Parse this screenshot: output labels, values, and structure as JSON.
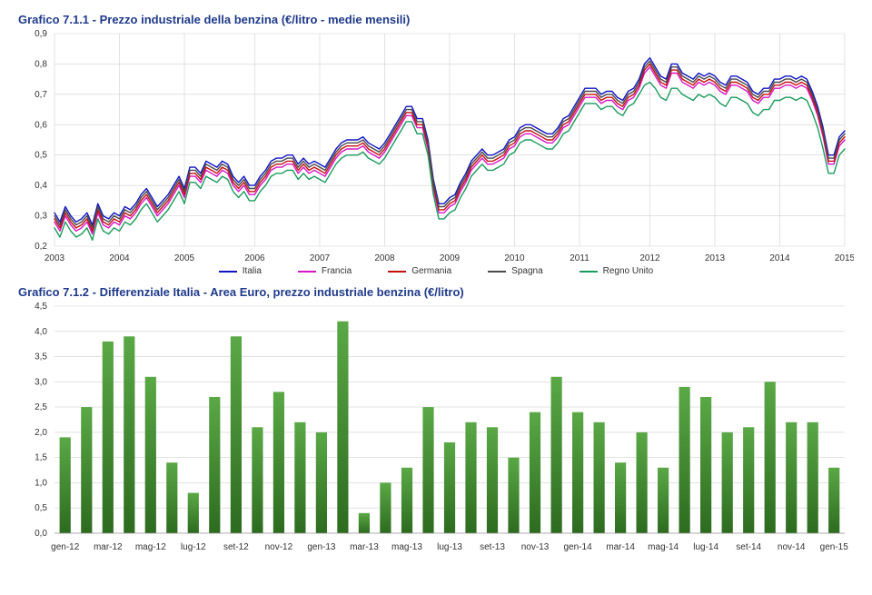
{
  "chart1": {
    "type": "line",
    "title": "Grafico 7.1.1 - Prezzo industriale della benzina (€/litro - medie mensili)",
    "title_color": "#1f3a8a",
    "title_fontsize": 13,
    "background_color": "#ffffff",
    "grid_color": "#d0d0d0",
    "axis_font_size": 10,
    "ylim": [
      0.2,
      0.9
    ],
    "ytick_step": 0.1,
    "yticks": [
      "0,2",
      "0,3",
      "0,4",
      "0,5",
      "0,6",
      "0,7",
      "0,8",
      "0,9"
    ],
    "xtick_labels": [
      "2003",
      "2004",
      "2005",
      "2006",
      "2007",
      "2008",
      "2009",
      "2010",
      "2011",
      "2012",
      "2013",
      "2014",
      "2015"
    ],
    "line_width": 1.4,
    "series": [
      {
        "name": "Italia",
        "color": "#1014c4",
        "values": [
          0.31,
          0.28,
          0.33,
          0.3,
          0.28,
          0.29,
          0.31,
          0.27,
          0.34,
          0.3,
          0.29,
          0.31,
          0.3,
          0.33,
          0.32,
          0.34,
          0.37,
          0.39,
          0.36,
          0.33,
          0.35,
          0.37,
          0.4,
          0.43,
          0.39,
          0.46,
          0.46,
          0.44,
          0.48,
          0.47,
          0.46,
          0.48,
          0.47,
          0.43,
          0.41,
          0.43,
          0.4,
          0.4,
          0.43,
          0.45,
          0.48,
          0.49,
          0.49,
          0.5,
          0.5,
          0.47,
          0.49,
          0.47,
          0.48,
          0.47,
          0.46,
          0.49,
          0.52,
          0.54,
          0.55,
          0.55,
          0.55,
          0.56,
          0.54,
          0.53,
          0.52,
          0.54,
          0.57,
          0.6,
          0.63,
          0.66,
          0.66,
          0.62,
          0.62,
          0.55,
          0.42,
          0.34,
          0.34,
          0.36,
          0.37,
          0.41,
          0.44,
          0.48,
          0.5,
          0.52,
          0.5,
          0.5,
          0.51,
          0.52,
          0.55,
          0.56,
          0.59,
          0.6,
          0.6,
          0.59,
          0.58,
          0.57,
          0.57,
          0.59,
          0.62,
          0.63,
          0.66,
          0.69,
          0.72,
          0.72,
          0.72,
          0.7,
          0.71,
          0.71,
          0.69,
          0.68,
          0.71,
          0.72,
          0.75,
          0.8,
          0.82,
          0.79,
          0.76,
          0.75,
          0.8,
          0.8,
          0.77,
          0.76,
          0.75,
          0.77,
          0.76,
          0.77,
          0.76,
          0.74,
          0.73,
          0.76,
          0.76,
          0.75,
          0.74,
          0.71,
          0.7,
          0.72,
          0.72,
          0.75,
          0.75,
          0.76,
          0.76,
          0.75,
          0.76,
          0.75,
          0.71,
          0.66,
          0.59,
          0.5,
          0.5,
          0.56,
          0.58
        ]
      },
      {
        "name": "Francia",
        "color": "#d616c4",
        "values": [
          0.28,
          0.25,
          0.3,
          0.27,
          0.25,
          0.26,
          0.28,
          0.24,
          0.31,
          0.27,
          0.26,
          0.28,
          0.27,
          0.3,
          0.29,
          0.31,
          0.34,
          0.36,
          0.33,
          0.3,
          0.32,
          0.34,
          0.37,
          0.4,
          0.36,
          0.43,
          0.43,
          0.41,
          0.45,
          0.44,
          0.43,
          0.45,
          0.44,
          0.4,
          0.38,
          0.4,
          0.37,
          0.37,
          0.4,
          0.42,
          0.45,
          0.46,
          0.46,
          0.47,
          0.47,
          0.44,
          0.46,
          0.44,
          0.45,
          0.44,
          0.43,
          0.46,
          0.49,
          0.51,
          0.52,
          0.52,
          0.52,
          0.53,
          0.51,
          0.5,
          0.49,
          0.51,
          0.54,
          0.57,
          0.6,
          0.63,
          0.63,
          0.59,
          0.59,
          0.52,
          0.39,
          0.31,
          0.31,
          0.33,
          0.34,
          0.38,
          0.41,
          0.45,
          0.47,
          0.49,
          0.47,
          0.47,
          0.48,
          0.49,
          0.52,
          0.53,
          0.56,
          0.57,
          0.57,
          0.56,
          0.55,
          0.54,
          0.54,
          0.56,
          0.59,
          0.6,
          0.63,
          0.66,
          0.69,
          0.69,
          0.69,
          0.67,
          0.68,
          0.68,
          0.66,
          0.65,
          0.68,
          0.69,
          0.72,
          0.77,
          0.79,
          0.76,
          0.73,
          0.72,
          0.77,
          0.77,
          0.74,
          0.73,
          0.72,
          0.74,
          0.73,
          0.74,
          0.73,
          0.71,
          0.7,
          0.73,
          0.73,
          0.72,
          0.71,
          0.68,
          0.67,
          0.69,
          0.69,
          0.72,
          0.72,
          0.73,
          0.73,
          0.72,
          0.73,
          0.72,
          0.68,
          0.63,
          0.56,
          0.47,
          0.47,
          0.53,
          0.55
        ]
      },
      {
        "name": "Germania",
        "color": "#c41010",
        "values": [
          0.29,
          0.26,
          0.31,
          0.28,
          0.26,
          0.27,
          0.29,
          0.25,
          0.32,
          0.28,
          0.27,
          0.29,
          0.28,
          0.31,
          0.3,
          0.32,
          0.35,
          0.37,
          0.34,
          0.31,
          0.33,
          0.35,
          0.38,
          0.41,
          0.37,
          0.44,
          0.44,
          0.42,
          0.46,
          0.45,
          0.44,
          0.46,
          0.45,
          0.41,
          0.39,
          0.41,
          0.38,
          0.38,
          0.41,
          0.43,
          0.46,
          0.47,
          0.47,
          0.48,
          0.48,
          0.45,
          0.47,
          0.45,
          0.46,
          0.45,
          0.44,
          0.47,
          0.5,
          0.52,
          0.53,
          0.53,
          0.53,
          0.54,
          0.52,
          0.51,
          0.5,
          0.52,
          0.55,
          0.58,
          0.61,
          0.64,
          0.64,
          0.6,
          0.6,
          0.53,
          0.4,
          0.32,
          0.32,
          0.34,
          0.35,
          0.39,
          0.42,
          0.46,
          0.48,
          0.5,
          0.48,
          0.48,
          0.49,
          0.5,
          0.53,
          0.54,
          0.57,
          0.58,
          0.58,
          0.57,
          0.56,
          0.55,
          0.55,
          0.57,
          0.6,
          0.61,
          0.64,
          0.67,
          0.7,
          0.7,
          0.7,
          0.68,
          0.69,
          0.69,
          0.67,
          0.66,
          0.69,
          0.7,
          0.73,
          0.78,
          0.8,
          0.77,
          0.74,
          0.73,
          0.78,
          0.78,
          0.75,
          0.74,
          0.73,
          0.75,
          0.74,
          0.75,
          0.74,
          0.72,
          0.71,
          0.74,
          0.74,
          0.73,
          0.72,
          0.69,
          0.68,
          0.7,
          0.7,
          0.73,
          0.73,
          0.74,
          0.74,
          0.73,
          0.74,
          0.73,
          0.69,
          0.64,
          0.57,
          0.48,
          0.48,
          0.54,
          0.56
        ]
      },
      {
        "name": "Spagna",
        "color": "#4a4a4a",
        "values": [
          0.3,
          0.27,
          0.32,
          0.29,
          0.27,
          0.28,
          0.3,
          0.26,
          0.33,
          0.29,
          0.28,
          0.3,
          0.29,
          0.32,
          0.31,
          0.33,
          0.36,
          0.38,
          0.35,
          0.32,
          0.34,
          0.36,
          0.39,
          0.42,
          0.38,
          0.45,
          0.45,
          0.43,
          0.47,
          0.46,
          0.45,
          0.47,
          0.46,
          0.42,
          0.4,
          0.42,
          0.39,
          0.39,
          0.42,
          0.44,
          0.47,
          0.48,
          0.48,
          0.49,
          0.49,
          0.46,
          0.48,
          0.46,
          0.47,
          0.46,
          0.45,
          0.48,
          0.51,
          0.53,
          0.54,
          0.54,
          0.54,
          0.55,
          0.53,
          0.52,
          0.51,
          0.53,
          0.56,
          0.59,
          0.62,
          0.65,
          0.65,
          0.61,
          0.61,
          0.54,
          0.41,
          0.33,
          0.33,
          0.35,
          0.36,
          0.4,
          0.43,
          0.47,
          0.49,
          0.51,
          0.49,
          0.49,
          0.5,
          0.51,
          0.54,
          0.55,
          0.58,
          0.59,
          0.59,
          0.58,
          0.57,
          0.56,
          0.56,
          0.58,
          0.61,
          0.62,
          0.65,
          0.68,
          0.71,
          0.71,
          0.71,
          0.69,
          0.7,
          0.7,
          0.68,
          0.67,
          0.7,
          0.71,
          0.74,
          0.79,
          0.81,
          0.78,
          0.75,
          0.74,
          0.79,
          0.79,
          0.76,
          0.75,
          0.74,
          0.76,
          0.75,
          0.76,
          0.75,
          0.73,
          0.72,
          0.75,
          0.75,
          0.74,
          0.73,
          0.7,
          0.69,
          0.71,
          0.71,
          0.74,
          0.74,
          0.75,
          0.75,
          0.74,
          0.75,
          0.74,
          0.7,
          0.65,
          0.58,
          0.49,
          0.49,
          0.55,
          0.57
        ]
      },
      {
        "name": "Regno Unito",
        "color": "#1a9b5c",
        "values": [
          0.26,
          0.23,
          0.28,
          0.25,
          0.23,
          0.24,
          0.26,
          0.22,
          0.29,
          0.25,
          0.24,
          0.26,
          0.25,
          0.28,
          0.27,
          0.29,
          0.32,
          0.34,
          0.31,
          0.28,
          0.3,
          0.32,
          0.35,
          0.38,
          0.34,
          0.41,
          0.41,
          0.39,
          0.43,
          0.42,
          0.41,
          0.43,
          0.42,
          0.38,
          0.36,
          0.38,
          0.35,
          0.35,
          0.38,
          0.4,
          0.43,
          0.44,
          0.44,
          0.45,
          0.45,
          0.42,
          0.44,
          0.42,
          0.43,
          0.42,
          0.41,
          0.44,
          0.47,
          0.49,
          0.5,
          0.5,
          0.5,
          0.51,
          0.49,
          0.48,
          0.47,
          0.49,
          0.52,
          0.55,
          0.58,
          0.61,
          0.61,
          0.57,
          0.57,
          0.5,
          0.37,
          0.29,
          0.29,
          0.31,
          0.32,
          0.36,
          0.39,
          0.43,
          0.45,
          0.47,
          0.45,
          0.45,
          0.46,
          0.47,
          0.5,
          0.51,
          0.54,
          0.55,
          0.55,
          0.54,
          0.53,
          0.52,
          0.52,
          0.54,
          0.57,
          0.58,
          0.61,
          0.64,
          0.67,
          0.67,
          0.67,
          0.65,
          0.66,
          0.66,
          0.64,
          0.63,
          0.66,
          0.67,
          0.7,
          0.73,
          0.74,
          0.72,
          0.69,
          0.68,
          0.72,
          0.72,
          0.7,
          0.69,
          0.68,
          0.7,
          0.69,
          0.7,
          0.69,
          0.67,
          0.66,
          0.69,
          0.69,
          0.68,
          0.67,
          0.64,
          0.63,
          0.65,
          0.65,
          0.68,
          0.68,
          0.69,
          0.69,
          0.68,
          0.69,
          0.68,
          0.64,
          0.59,
          0.52,
          0.44,
          0.44,
          0.5,
          0.52
        ]
      }
    ],
    "legend_labels": [
      "Italia",
      "Francia",
      "Germania",
      "Spagna",
      "Regno Unito"
    ]
  },
  "chart2": {
    "type": "bar",
    "title": "Grafico 7.1.2 - Differenziale Italia - Area Euro, prezzo industriale benzina (€/litro)",
    "title_color": "#1f3a8a",
    "title_fontsize": 13,
    "background_color": "#ffffff",
    "grid_color": "#d0d0d0",
    "axis_font_size": 10,
    "ylim": [
      0.0,
      4.5
    ],
    "ytick_step": 0.5,
    "yticks": [
      "0,0",
      "0,5",
      "1,0",
      "1,5",
      "2,0",
      "2,5",
      "3,0",
      "3,5",
      "4,0",
      "4,5"
    ],
    "bar_color_top": "#5aa846",
    "bar_color_bottom": "#2d6b1f",
    "bar_width": 0.52,
    "x_major_labels": [
      "gen-12",
      "mar-12",
      "mag-12",
      "lug-12",
      "set-12",
      "nov-12",
      "gen-13",
      "mar-13",
      "mag-13",
      "lug-13",
      "set-13",
      "nov-13",
      "gen-14",
      "mar-14",
      "mag-14",
      "lug-14",
      "set-14",
      "nov-14",
      "gen-15"
    ],
    "bars": [
      {
        "x": 0,
        "v": 1.9
      },
      {
        "x": 1,
        "v": 2.5
      },
      {
        "x": 2,
        "v": 3.8
      },
      {
        "x": 3,
        "v": 3.9
      },
      {
        "x": 4,
        "v": 3.1
      },
      {
        "x": 5,
        "v": 1.4
      },
      {
        "x": 6,
        "v": 0.8
      },
      {
        "x": 7,
        "v": 2.7
      },
      {
        "x": 8,
        "v": 3.9
      },
      {
        "x": 9,
        "v": 2.1
      },
      {
        "x": 10,
        "v": 2.8
      },
      {
        "x": 11,
        "v": 2.2
      },
      {
        "x": 12,
        "v": 2.0
      },
      {
        "x": 13,
        "v": 4.2
      },
      {
        "x": 14,
        "v": 0.4
      },
      {
        "x": 15,
        "v": 1.0
      },
      {
        "x": 16,
        "v": 1.3
      },
      {
        "x": 17,
        "v": 2.5
      },
      {
        "x": 18,
        "v": 1.8
      },
      {
        "x": 19,
        "v": 2.2
      },
      {
        "x": 20,
        "v": 2.1
      },
      {
        "x": 21,
        "v": 1.5
      },
      {
        "x": 22,
        "v": 2.4
      },
      {
        "x": 23,
        "v": 3.1
      },
      {
        "x": 24,
        "v": 2.4
      },
      {
        "x": 25,
        "v": 2.2
      },
      {
        "x": 26,
        "v": 1.4
      },
      {
        "x": 27,
        "v": 2.0
      },
      {
        "x": 28,
        "v": 1.3
      },
      {
        "x": 29,
        "v": 2.9
      },
      {
        "x": 30,
        "v": 2.7
      },
      {
        "x": 31,
        "v": 2.0
      },
      {
        "x": 32,
        "v": 2.1
      },
      {
        "x": 33,
        "v": 3.0
      },
      {
        "x": 34,
        "v": 2.2
      },
      {
        "x": 35,
        "v": 2.2
      },
      {
        "x": 36,
        "v": 1.3
      }
    ]
  }
}
